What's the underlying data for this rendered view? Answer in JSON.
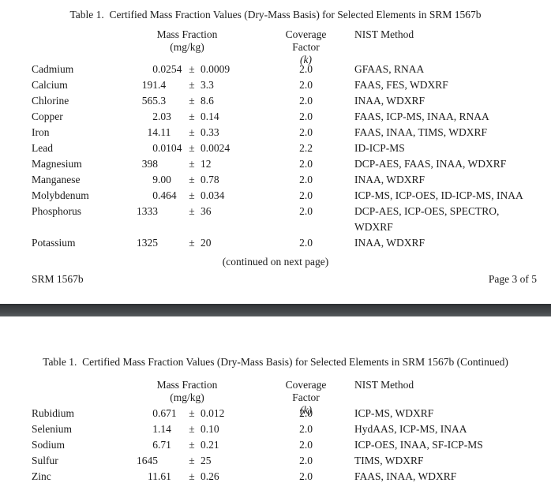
{
  "pm_symbol": "±",
  "page1": {
    "title": "Table 1.  Certified Mass Fraction Values (Dry-Mass Basis) for Selected Elements in SRM 1567b",
    "header": {
      "mass_fraction": "Mass Fraction",
      "unit": "(mg/kg)",
      "coverage_factor": "Coverage Factor",
      "k_label": "(k)",
      "nist_method": "NIST Method"
    },
    "rows": [
      {
        "element": "Cadmium",
        "value": "0.0254",
        "uncertainty": "0.0009",
        "k": "2.0",
        "method": "GFAAS, RNAA"
      },
      {
        "element": "Calcium",
        "value": "191.4",
        "uncertainty": "3.3",
        "k": "2.0",
        "method": "FAAS, FES, WDXRF"
      },
      {
        "element": "Chlorine",
        "value": "565.3",
        "uncertainty": "8.6",
        "k": "2.0",
        "method": "INAA, WDXRF"
      },
      {
        "element": "Copper",
        "value": "2.03",
        "uncertainty": "0.14",
        "k": "2.0",
        "method": "FAAS, ICP-MS, INAA, RNAA"
      },
      {
        "element": "Iron",
        "value": "14.11",
        "uncertainty": "0.33",
        "k": "2.0",
        "method": "FAAS, INAA, TIMS, WDXRF"
      },
      {
        "element": "Lead",
        "value": "0.0104",
        "uncertainty": "0.0024",
        "k": "2.2",
        "method": "ID-ICP-MS"
      },
      {
        "element": "Magnesium",
        "value": "398",
        "uncertainty": "12",
        "k": "2.0",
        "method": "DCP-AES, FAAS, INAA, WDXRF"
      },
      {
        "element": "Manganese",
        "value": "9.00",
        "uncertainty": "0.78",
        "k": "2.0",
        "method": "INAA, WDXRF"
      },
      {
        "element": "Molybdenum",
        "value": "0.464",
        "uncertainty": "0.034",
        "k": "2.0",
        "method": "ICP-MS, ICP-OES, ID-ICP-MS, INAA"
      },
      {
        "element": "Phosphorus",
        "value": "1333",
        "uncertainty": "36",
        "k": "2.0",
        "method": "DCP-AES, ICP-OES, SPECTRO,\nWDXRF"
      },
      {
        "element": "Potassium",
        "value": "1325",
        "uncertainty": "20",
        "k": "2.0",
        "method": "INAA, WDXRF"
      }
    ],
    "continued_note": "(continued on next page)",
    "footer_left": "SRM 1567b",
    "footer_right": "Page 3 of 5"
  },
  "page2": {
    "title": "Table 1.  Certified Mass Fraction Values (Dry-Mass Basis) for Selected Elements in SRM 1567b (Continued)",
    "header": {
      "mass_fraction": "Mass Fraction",
      "unit": "(mg/kg)",
      "coverage_factor": "Coverage Factor",
      "k_label": "(k)",
      "nist_method": "NIST Method"
    },
    "rows": [
      {
        "element": "Rubidium",
        "value": "0.671",
        "uncertainty": "0.012",
        "k": "2.0",
        "method": "ICP-MS, WDXRF"
      },
      {
        "element": "Selenium",
        "value": "1.14",
        "uncertainty": "0.10",
        "k": "2.0",
        "method": "HydAAS, ICP-MS, INAA"
      },
      {
        "element": "Sodium",
        "value": "6.71",
        "uncertainty": "0.21",
        "k": "2.0",
        "method": "ICP-OES, INAA, SF-ICP-MS"
      },
      {
        "element": "Sulfur",
        "value": "1645",
        "uncertainty": "25",
        "k": "2.0",
        "method": "TIMS, WDXRF"
      },
      {
        "element": "Zinc",
        "value": "11.61",
        "uncertainty": "0.26",
        "k": "2.0",
        "method": "FAAS, INAA, WDXRF"
      }
    ]
  }
}
